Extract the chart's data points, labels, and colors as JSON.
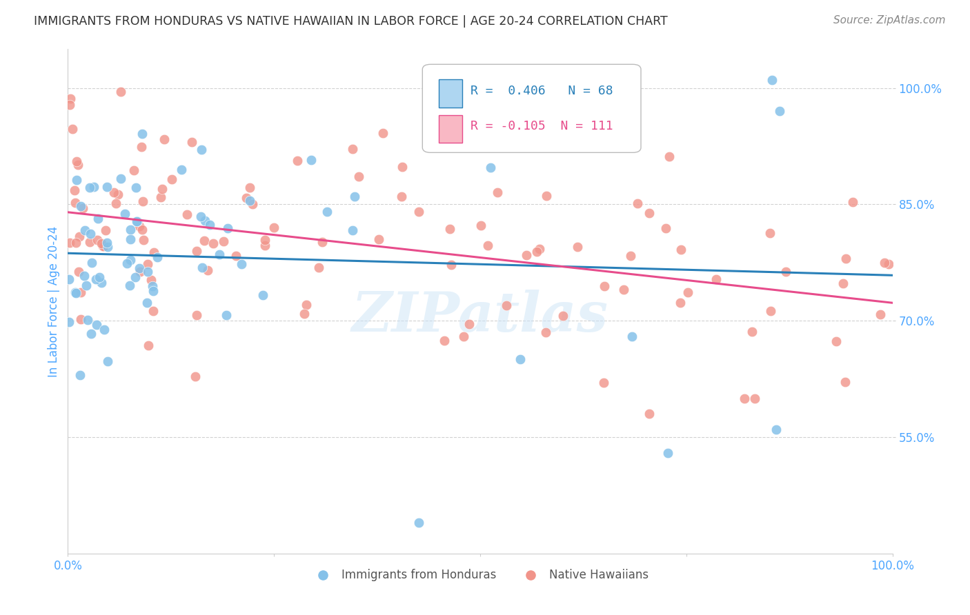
{
  "title": "IMMIGRANTS FROM HONDURAS VS NATIVE HAWAIIAN IN LABOR FORCE | AGE 20-24 CORRELATION CHART",
  "source": "Source: ZipAtlas.com",
  "ylabel": "In Labor Force | Age 20-24",
  "xlim": [
    0.0,
    1.0
  ],
  "ylim": [
    0.4,
    1.05
  ],
  "yticks": [
    0.55,
    0.7,
    0.85,
    1.0
  ],
  "ytick_labels": [
    "55.0%",
    "70.0%",
    "85.0%",
    "100.0%"
  ],
  "xtick_labels": [
    "0.0%",
    "",
    "",
    "",
    "100.0%"
  ],
  "r_honduras": 0.406,
  "n_honduras": 68,
  "r_hawaiian": -0.105,
  "n_hawaiian": 111,
  "legend_labels": [
    "Immigrants from Honduras",
    "Native Hawaiians"
  ],
  "color_honduras": "#85c1e9",
  "color_hawaiian": "#f1948a",
  "line_color_honduras": "#2980b9",
  "line_color_hawaiian": "#e74c8b",
  "legend_fill_honduras": "#aed6f1",
  "legend_fill_hawaiian": "#f9b8c4",
  "watermark": "ZIPatlas",
  "background_color": "#ffffff",
  "grid_color": "#cccccc",
  "title_color": "#333333",
  "axis_label_color": "#4da6ff",
  "tick_label_color": "#4da6ff",
  "source_color": "#888888"
}
